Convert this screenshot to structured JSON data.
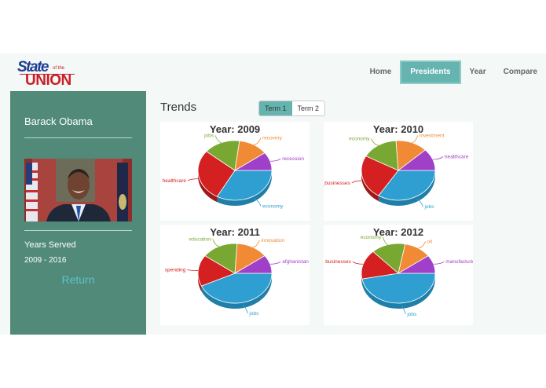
{
  "header": {
    "logo": {
      "line1": "State",
      "small": "of the",
      "line2": "UNION"
    },
    "nav": [
      {
        "label": "Home",
        "active": false
      },
      {
        "label": "Presidents",
        "active": true
      },
      {
        "label": "Year",
        "active": false
      },
      {
        "label": "Compare",
        "active": false
      }
    ]
  },
  "sidebar": {
    "name": "Barack Obama",
    "years_label": "Years Served",
    "years": "2009 - 2016",
    "return_label": "Return"
  },
  "main": {
    "title": "Trends",
    "terms": [
      {
        "label": "Term 1",
        "active": true
      },
      {
        "label": "Term 2",
        "active": false
      }
    ]
  },
  "colors": {
    "blue": "#2e9fd0",
    "red": "#d42020",
    "green": "#79a832",
    "orange": "#f08a35",
    "purple": "#a040c8",
    "accent": "#66b4b0",
    "sidebar": "#528a7a"
  },
  "chart_data": [
    {
      "type": "pie",
      "title": "Year: 2009",
      "categories": [
        "economy",
        "healthcare",
        "jobs",
        "recovery",
        "recession"
      ],
      "values": [
        33,
        28,
        16,
        13,
        10
      ]
    },
    {
      "type": "pie",
      "title": "Year: 2010",
      "categories": [
        "jobs",
        "small_businesses",
        "economy",
        "investment",
        "healthcare"
      ],
      "values": [
        34,
        24,
        16,
        14,
        12
      ]
    },
    {
      "type": "pie",
      "title": "Year: 2011",
      "categories": [
        "jobs",
        "spending",
        "education",
        "innovation",
        "afghanistan"
      ],
      "values": [
        43,
        17,
        16,
        14,
        10
      ]
    },
    {
      "type": "pie",
      "title": "Year: 2012",
      "categories": [
        "jobs",
        "businesses",
        "economy",
        "oil",
        "manufacturing"
      ],
      "values": [
        47,
        16,
        15,
        12,
        10
      ]
    }
  ]
}
